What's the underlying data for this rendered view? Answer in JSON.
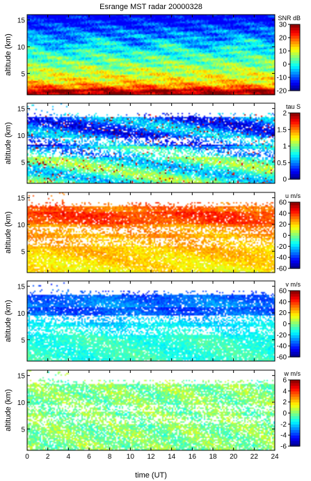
{
  "chart_data": {
    "type": "heatmap",
    "title": "Esrange MST radar 20000328",
    "xlabel": "time (UT)",
    "x_ticks": [
      "0",
      "2",
      "4",
      "6",
      "8",
      "10",
      "12",
      "14",
      "16",
      "18",
      "20",
      "22",
      "24"
    ],
    "xlim": [
      0,
      24
    ],
    "colormap": "jet",
    "panels": [
      {
        "name": "snr",
        "ylabel": "altitude (km)",
        "ylim": [
          1,
          16
        ],
        "y_ticks": [
          "5",
          "10",
          "15"
        ],
        "colorbar_label": "SNR dB",
        "clim": [
          -20,
          30
        ],
        "colorbar_ticks": [
          "30",
          "20",
          "10",
          "0",
          "-10",
          "-20"
        ],
        "coverage": 1.0
      },
      {
        "name": "tau",
        "ylabel": "altitude (km)",
        "ylim": [
          1,
          16
        ],
        "y_ticks": [
          "5",
          "10",
          "15"
        ],
        "colorbar_label": "tau S",
        "clim": [
          0,
          2
        ],
        "colorbar_ticks": [
          "2",
          "1.5",
          "1",
          "0.5",
          "0"
        ],
        "coverage": 0.78
      },
      {
        "name": "u",
        "ylabel": "altitude (km)",
        "ylim": [
          1,
          16
        ],
        "y_ticks": [
          "5",
          "10",
          "15"
        ],
        "colorbar_label": "u m/s",
        "clim": [
          -60,
          60
        ],
        "colorbar_ticks": [
          "60",
          "40",
          "20",
          "0",
          "-20",
          "-40",
          "-60"
        ],
        "coverage": 0.78
      },
      {
        "name": "v",
        "ylabel": "altitude (km)",
        "ylim": [
          1,
          16
        ],
        "y_ticks": [
          "5",
          "10",
          "15"
        ],
        "colorbar_label": "v m/s",
        "clim": [
          -60,
          60
        ],
        "colorbar_ticks": [
          "60",
          "40",
          "20",
          "0",
          "-20",
          "-40",
          "-60"
        ],
        "coverage": 0.78
      },
      {
        "name": "w",
        "ylabel": "altitude (km)",
        "ylim": [
          1,
          16
        ],
        "y_ticks": [
          "5",
          "10",
          "15"
        ],
        "colorbar_label": "w m/s",
        "clim": [
          -6,
          6
        ],
        "colorbar_ticks": [
          "6",
          "4",
          "2",
          "0",
          "-2",
          "-4",
          "-6"
        ],
        "coverage": 0.7
      }
    ]
  }
}
